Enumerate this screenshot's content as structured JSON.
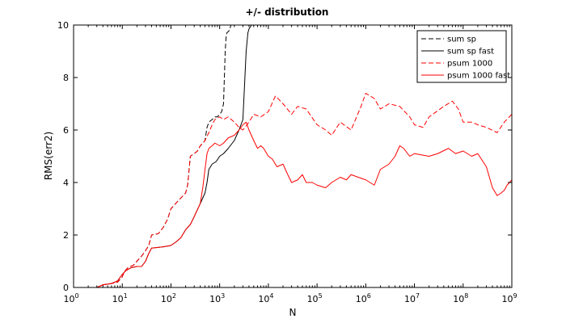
{
  "chart_data": {
    "type": "line",
    "title": "+/- distribution",
    "xlabel": "N",
    "ylabel": "RMS(err2)",
    "xscale": "log",
    "xlim": [
      1,
      1000000000
    ],
    "ylim": [
      0,
      10
    ],
    "grid": false,
    "legend_position": "top-right",
    "x_ticks": [
      {
        "base": "10",
        "exp": "0",
        "value": 1
      },
      {
        "base": "10",
        "exp": "1",
        "value": 10
      },
      {
        "base": "10",
        "exp": "2",
        "value": 100
      },
      {
        "base": "10",
        "exp": "3",
        "value": 1000
      },
      {
        "base": "10",
        "exp": "4",
        "value": 10000
      },
      {
        "base": "10",
        "exp": "5",
        "value": 100000
      },
      {
        "base": "10",
        "exp": "6",
        "value": 1000000
      },
      {
        "base": "10",
        "exp": "7",
        "value": 10000000
      },
      {
        "base": "10",
        "exp": "8",
        "value": 100000000
      },
      {
        "base": "10",
        "exp": "9",
        "value": 1000000000
      }
    ],
    "y_ticks": [
      "0",
      "2",
      "4",
      "6",
      "8",
      "10"
    ],
    "series": [
      {
        "name": "sum sp",
        "color": "#000000",
        "dash": "dashed",
        "points": [
          [
            1,
            0
          ],
          [
            3,
            0
          ],
          [
            4,
            0.1
          ],
          [
            6,
            0.15
          ],
          [
            8,
            0.2
          ],
          [
            10,
            0.4
          ],
          [
            11,
            0.6
          ],
          [
            13,
            0.75
          ],
          [
            17,
            0.85
          ],
          [
            20,
            1.0
          ],
          [
            25,
            1.2
          ],
          [
            30,
            1.4
          ],
          [
            35,
            1.6
          ],
          [
            40,
            2.0
          ],
          [
            55,
            2.05
          ],
          [
            70,
            2.3
          ],
          [
            85,
            2.6
          ],
          [
            100,
            3.0
          ],
          [
            140,
            3.3
          ],
          [
            200,
            3.6
          ],
          [
            220,
            3.9
          ],
          [
            250,
            5.0
          ],
          [
            300,
            5.1
          ],
          [
            350,
            5.2
          ],
          [
            400,
            5.4
          ],
          [
            450,
            5.5
          ],
          [
            500,
            5.6
          ],
          [
            550,
            6.1
          ],
          [
            600,
            6.3
          ],
          [
            700,
            6.4
          ],
          [
            800,
            6.5
          ],
          [
            900,
            6.5
          ],
          [
            1000,
            6.6
          ],
          [
            1100,
            6.7
          ],
          [
            1200,
            7.0
          ],
          [
            1300,
            9.0
          ],
          [
            1350,
            9.5
          ],
          [
            1400,
            9.7
          ],
          [
            1600,
            9.8
          ],
          [
            1700,
            10
          ]
        ]
      },
      {
        "name": "sum sp fast",
        "color": "#000000",
        "dash": "solid",
        "points": [
          [
            1,
            0
          ],
          [
            3,
            0
          ],
          [
            4,
            0.1
          ],
          [
            6,
            0.15
          ],
          [
            8,
            0.25
          ],
          [
            10,
            0.5
          ],
          [
            12,
            0.65
          ],
          [
            15,
            0.75
          ],
          [
            20,
            0.8
          ],
          [
            25,
            0.8
          ],
          [
            30,
            1.0
          ],
          [
            35,
            1.3
          ],
          [
            40,
            1.5
          ],
          [
            70,
            1.55
          ],
          [
            100,
            1.6
          ],
          [
            130,
            1.75
          ],
          [
            160,
            1.9
          ],
          [
            200,
            2.2
          ],
          [
            250,
            2.4
          ],
          [
            300,
            2.7
          ],
          [
            400,
            3.2
          ],
          [
            500,
            3.6
          ],
          [
            550,
            4.0
          ],
          [
            600,
            4.5
          ],
          [
            700,
            4.7
          ],
          [
            850,
            4.8
          ],
          [
            1000,
            5.0
          ],
          [
            1200,
            5.1
          ],
          [
            1500,
            5.3
          ],
          [
            2000,
            5.6
          ],
          [
            2500,
            6.0
          ],
          [
            3000,
            6.4
          ],
          [
            3300,
            8.0
          ],
          [
            3500,
            9.0
          ],
          [
            3800,
            9.7
          ],
          [
            4000,
            9.85
          ],
          [
            4500,
            10
          ]
        ]
      },
      {
        "name": "psum 1000",
        "color": "#ff0000",
        "dash": "dashed",
        "points": [
          [
            1,
            0
          ],
          [
            3,
            0
          ],
          [
            4,
            0.1
          ],
          [
            6,
            0.15
          ],
          [
            8,
            0.2
          ],
          [
            10,
            0.4
          ],
          [
            11,
            0.6
          ],
          [
            13,
            0.75
          ],
          [
            17,
            0.85
          ],
          [
            20,
            1.0
          ],
          [
            25,
            1.2
          ],
          [
            30,
            1.4
          ],
          [
            35,
            1.6
          ],
          [
            40,
            2.0
          ],
          [
            55,
            2.05
          ],
          [
            70,
            2.3
          ],
          [
            85,
            2.6
          ],
          [
            100,
            3.0
          ],
          [
            140,
            3.3
          ],
          [
            200,
            3.6
          ],
          [
            220,
            3.9
          ],
          [
            250,
            5.0
          ],
          [
            300,
            5.1
          ],
          [
            350,
            5.2
          ],
          [
            400,
            5.4
          ],
          [
            450,
            5.5
          ],
          [
            500,
            5.6
          ],
          [
            600,
            5.9
          ],
          [
            700,
            6.2
          ],
          [
            800,
            6.4
          ],
          [
            1000,
            6.5
          ],
          [
            1200,
            6.4
          ],
          [
            1500,
            6.5
          ],
          [
            2000,
            6.3
          ],
          [
            2500,
            6.1
          ],
          [
            3000,
            6.0
          ],
          [
            4000,
            6.3
          ],
          [
            5000,
            6.6
          ],
          [
            7000,
            6.5
          ],
          [
            10000,
            6.7
          ],
          [
            14000,
            7.3
          ],
          [
            20000,
            7.0
          ],
          [
            30000,
            6.6
          ],
          [
            40000,
            6.9
          ],
          [
            60000,
            6.8
          ],
          [
            100000,
            6.2
          ],
          [
            150000,
            6.0
          ],
          [
            200000,
            5.8
          ],
          [
            300000,
            6.3
          ],
          [
            500000,
            6.0
          ],
          [
            800000,
            6.9
          ],
          [
            1000000,
            7.4
          ],
          [
            1500000,
            7.2
          ],
          [
            2000000,
            6.8
          ],
          [
            3000000,
            7.0
          ],
          [
            5000000,
            6.9
          ],
          [
            8000000,
            6.5
          ],
          [
            10000000,
            6.2
          ],
          [
            15000000,
            6.1
          ],
          [
            20000000,
            6.5
          ],
          [
            40000000,
            6.9
          ],
          [
            60000000,
            7.1
          ],
          [
            80000000,
            6.8
          ],
          [
            100000000,
            6.3
          ],
          [
            150000000,
            6.3
          ],
          [
            200000000,
            6.2
          ],
          [
            300000000,
            6.1
          ],
          [
            500000000,
            5.9
          ],
          [
            700000000,
            6.3
          ],
          [
            1000000000,
            6.6
          ]
        ]
      },
      {
        "name": "psum 1000 fast",
        "color": "#ff0000",
        "dash": "solid",
        "points": [
          [
            1,
            0
          ],
          [
            3,
            0
          ],
          [
            4,
            0.1
          ],
          [
            6,
            0.15
          ],
          [
            8,
            0.25
          ],
          [
            10,
            0.5
          ],
          [
            12,
            0.65
          ],
          [
            15,
            0.75
          ],
          [
            20,
            0.8
          ],
          [
            25,
            0.8
          ],
          [
            30,
            1.0
          ],
          [
            35,
            1.3
          ],
          [
            40,
            1.5
          ],
          [
            70,
            1.55
          ],
          [
            100,
            1.6
          ],
          [
            130,
            1.75
          ],
          [
            160,
            1.9
          ],
          [
            200,
            2.2
          ],
          [
            250,
            2.4
          ],
          [
            300,
            2.7
          ],
          [
            400,
            3.2
          ],
          [
            450,
            3.8
          ],
          [
            500,
            4.5
          ],
          [
            550,
            5.1
          ],
          [
            600,
            5.3
          ],
          [
            700,
            5.4
          ],
          [
            800,
            5.5
          ],
          [
            1000,
            5.4
          ],
          [
            1200,
            5.5
          ],
          [
            1500,
            5.7
          ],
          [
            2000,
            5.8
          ],
          [
            2500,
            6.0
          ],
          [
            3000,
            6.2
          ],
          [
            3500,
            6.3
          ],
          [
            4000,
            6.0
          ],
          [
            5000,
            5.6
          ],
          [
            6000,
            5.3
          ],
          [
            7000,
            5.4
          ],
          [
            8000,
            5.3
          ],
          [
            10000,
            5.0
          ],
          [
            12000,
            4.9
          ],
          [
            15000,
            4.6
          ],
          [
            20000,
            4.7
          ],
          [
            25000,
            4.3
          ],
          [
            30000,
            4.0
          ],
          [
            40000,
            4.1
          ],
          [
            50000,
            4.3
          ],
          [
            60000,
            4.0
          ],
          [
            80000,
            4.0
          ],
          [
            100000,
            3.9
          ],
          [
            150000,
            3.8
          ],
          [
            200000,
            4.0
          ],
          [
            300000,
            4.2
          ],
          [
            400000,
            4.1
          ],
          [
            500000,
            4.3
          ],
          [
            700000,
            4.2
          ],
          [
            1000000,
            4.1
          ],
          [
            1500000,
            3.9
          ],
          [
            2000000,
            4.5
          ],
          [
            3000000,
            4.7
          ],
          [
            4000000,
            5.0
          ],
          [
            5000000,
            5.4
          ],
          [
            6000000,
            5.3
          ],
          [
            8000000,
            5.0
          ],
          [
            10000000,
            5.1
          ],
          [
            20000000,
            5.0
          ],
          [
            30000000,
            5.1
          ],
          [
            50000000,
            5.3
          ],
          [
            70000000,
            5.1
          ],
          [
            100000000,
            5.2
          ],
          [
            150000000,
            5.0
          ],
          [
            200000000,
            5.1
          ],
          [
            300000000,
            4.6
          ],
          [
            400000000,
            3.8
          ],
          [
            500000000,
            3.5
          ],
          [
            600000000,
            3.6
          ],
          [
            700000000,
            3.7
          ],
          [
            800000000,
            3.9
          ],
          [
            1000000000,
            4.1
          ]
        ]
      }
    ]
  }
}
